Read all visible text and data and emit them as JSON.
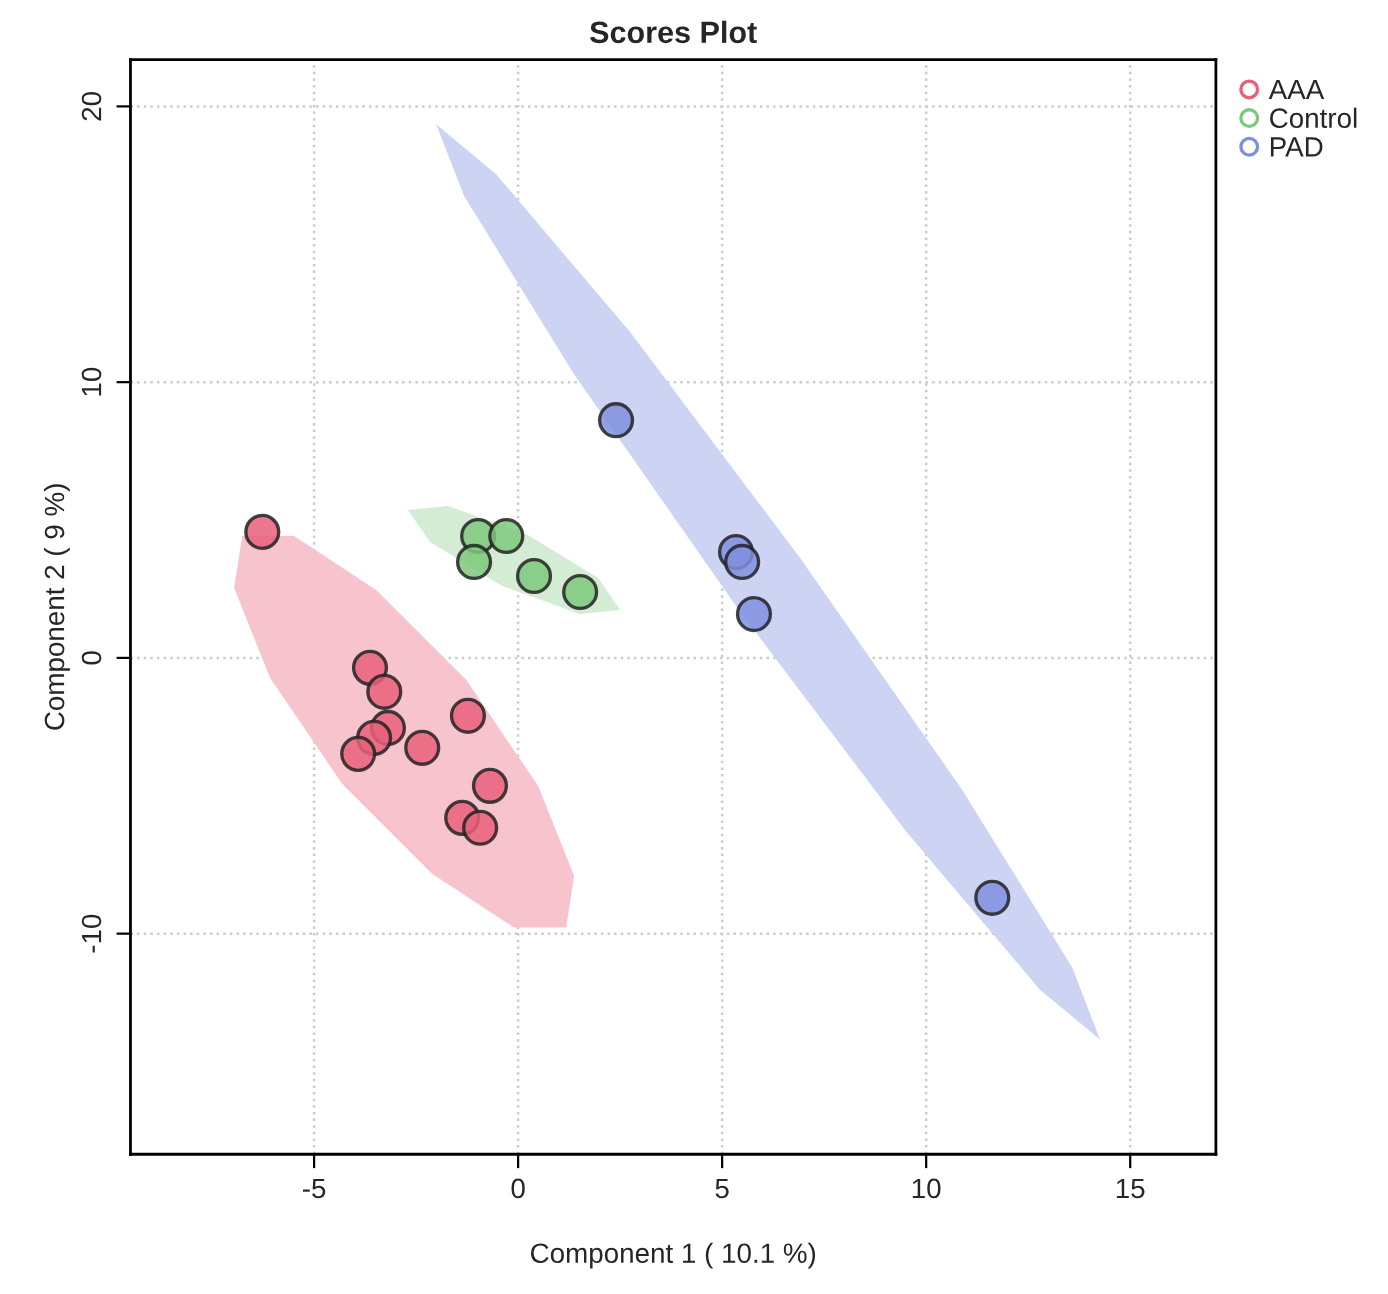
{
  "chart_data": {
    "type": "scatter",
    "title": "Scores Plot",
    "xlabel": "Component 1 ( 10.1 %)",
    "ylabel": "Component 2 ( 9 %)",
    "xlim": [
      -9.5,
      17.1
    ],
    "ylim": [
      -18,
      21.7
    ],
    "xticks": [
      -5,
      0,
      5,
      10,
      15
    ],
    "yticks": [
      -10,
      0,
      10,
      20
    ],
    "grid": true,
    "legend": "top right",
    "marker": "circle",
    "series": [
      {
        "type": "area",
        "marker": "none",
        "color": "#f7c3cd",
        "x": [
          -6.76,
          -5.49,
          -3.48,
          -1.27,
          0.49,
          1.37,
          1.18,
          -0.1,
          -2.11,
          -4.31,
          -6.08,
          -6.96
        ],
        "values": [
          4.42,
          4.42,
          2.46,
          -0.8,
          -4.64,
          -7.9,
          -9.78,
          -9.78,
          -7.83,
          -4.57,
          -0.72,
          2.54
        ]
      },
      {
        "type": "area",
        "marker": "none",
        "color": "#d3ecd3",
        "x": [
          2.5,
          1.52,
          -0.39,
          -2.16,
          -2.7,
          -1.72,
          0.2,
          1.96
        ],
        "values": [
          1.74,
          1.59,
          2.61,
          4.2,
          5.36,
          5.51,
          4.49,
          2.9
        ]
      },
      {
        "type": "area",
        "marker": "none",
        "color": "#cdd3f3",
        "x": [
          14.26,
          13.58,
          10.88,
          6.91,
          2.75,
          -0.54,
          -2.01,
          -1.32,
          1.37,
          5.34,
          9.51,
          12.79
        ],
        "values": [
          -13.84,
          -11.23,
          -4.78,
          3.62,
          11.81,
          17.54,
          19.35,
          16.74,
          10.29,
          1.88,
          -6.3,
          -12.03
        ]
      },
      {
        "name": "AAA",
        "color": "#e8607a",
        "x": [
          -6.27,
          -3.63,
          -3.28,
          -3.19,
          -3.53,
          -3.92,
          -2.35,
          -1.23,
          -0.69,
          -1.37,
          -0.93
        ],
        "values": [
          4.57,
          -0.36,
          -1.23,
          -2.54,
          -2.9,
          -3.48,
          -3.26,
          -2.1,
          -4.64,
          -5.8,
          -6.16
        ]
      },
      {
        "name": "Control",
        "color": "#7dc97d",
        "x": [
          -0.98,
          -0.29,
          -1.08,
          0.39,
          1.52
        ],
        "values": [
          4.42,
          4.42,
          3.48,
          2.97,
          2.39
        ]
      },
      {
        "name": "PAD",
        "color": "#7f8fdf",
        "x": [
          2.4,
          5.34,
          5.49,
          5.78,
          11.62
        ],
        "values": [
          8.62,
          3.84,
          3.48,
          1.59,
          -8.7
        ]
      }
    ]
  }
}
